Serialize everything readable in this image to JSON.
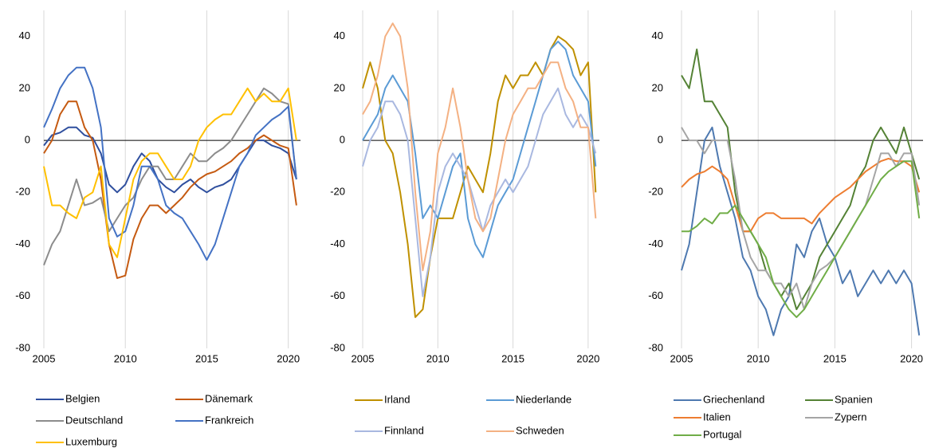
{
  "chart_data": [
    {
      "type": "line",
      "x": [
        2005,
        2005.5,
        2006,
        2006.5,
        2007,
        2007.5,
        2008,
        2008.5,
        2009,
        2009.5,
        2010,
        2010.5,
        2011,
        2011.5,
        2012,
        2012.5,
        2013,
        2013.5,
        2014,
        2014.5,
        2015,
        2015.5,
        2016,
        2016.5,
        2017,
        2017.5,
        2018,
        2018.5,
        2019,
        2019.5,
        2020,
        2020.5
      ],
      "xlim": [
        2005,
        2020.75
      ],
      "xticks": [
        2005,
        2010,
        2015,
        2020
      ],
      "ylim": [
        -80,
        50
      ],
      "yticks": [
        -80,
        -60,
        -40,
        -20,
        0,
        20,
        40
      ],
      "grid": true,
      "legend": "bottom",
      "series": [
        {
          "name": "Belgien",
          "color": "#2f4f9e",
          "values": [
            -2,
            2,
            3,
            5,
            5,
            2,
            1,
            -5,
            -17,
            -20,
            -17,
            -10,
            -5,
            -8,
            -15,
            -18,
            -20,
            -17,
            -15,
            -18,
            -20,
            -18,
            -17,
            -15,
            -10,
            -5,
            0,
            0,
            -2,
            -3,
            -5,
            -15
          ]
        },
        {
          "name": "Dänemark",
          "color": "#c55a11",
          "values": [
            -5,
            0,
            10,
            15,
            15,
            5,
            0,
            -15,
            -40,
            -53,
            -52,
            -38,
            -30,
            -25,
            -25,
            -28,
            -25,
            -22,
            -18,
            -15,
            -13,
            -12,
            -10,
            -8,
            -5,
            -3,
            0,
            2,
            0,
            -2,
            -3,
            -25
          ]
        },
        {
          "name": "Deutschland",
          "color": "#8c8c8c",
          "values": [
            -48,
            -40,
            -35,
            -25,
            -15,
            -25,
            -24,
            -22,
            -35,
            -30,
            -25,
            -22,
            -15,
            -10,
            -10,
            -15,
            -15,
            -10,
            -5,
            -8,
            -8,
            -5,
            -3,
            0,
            5,
            10,
            15,
            20,
            18,
            15,
            14,
            -15
          ]
        },
        {
          "name": "Frankreich",
          "color": "#4472c4",
          "values": [
            5,
            12,
            20,
            25,
            28,
            28,
            20,
            5,
            -30,
            -37,
            -35,
            -25,
            -10,
            -10,
            -15,
            -25,
            -28,
            -30,
            -35,
            -40,
            -46,
            -40,
            -30,
            -20,
            -10,
            -5,
            2,
            5,
            8,
            10,
            13,
            -15
          ]
        },
        {
          "name": "Luxemburg",
          "color": "#ffc000",
          "values": [
            -10,
            -25,
            -25,
            -28,
            -30,
            -22,
            -20,
            -10,
            -40,
            -45,
            -30,
            -15,
            -8,
            -5,
            -5,
            -10,
            -15,
            -15,
            -10,
            0,
            5,
            8,
            10,
            10,
            15,
            20,
            15,
            18,
            15,
            15,
            20,
            0
          ]
        }
      ]
    },
    {
      "type": "line",
      "x": [
        2005,
        2005.5,
        2006,
        2006.5,
        2007,
        2007.5,
        2008,
        2008.5,
        2009,
        2009.5,
        2010,
        2010.5,
        2011,
        2011.5,
        2012,
        2012.5,
        2013,
        2013.5,
        2014,
        2014.5,
        2015,
        2015.5,
        2016,
        2016.5,
        2017,
        2017.5,
        2018,
        2018.5,
        2019,
        2019.5,
        2020,
        2020.5
      ],
      "xlim": [
        2005,
        2020.75
      ],
      "xticks": [
        2005,
        2010,
        2015,
        2020
      ],
      "ylim": [
        -80,
        50
      ],
      "yticks": [
        -80,
        -60,
        -40,
        -20,
        0,
        20,
        40
      ],
      "grid": true,
      "legend": "bottom",
      "series": [
        {
          "name": "Irland",
          "color": "#bf9000",
          "values": [
            20,
            30,
            20,
            0,
            -5,
            -20,
            -40,
            -68,
            -65,
            -45,
            -30,
            -30,
            -30,
            -20,
            -10,
            -15,
            -20,
            -5,
            15,
            25,
            20,
            25,
            25,
            30,
            25,
            35,
            40,
            38,
            35,
            25,
            30,
            -20
          ]
        },
        {
          "name": "Niederlande",
          "color": "#5b9bd5",
          "values": [
            0,
            5,
            10,
            20,
            25,
            20,
            15,
            -5,
            -30,
            -25,
            -30,
            -20,
            -10,
            -5,
            -30,
            -40,
            -45,
            -35,
            -25,
            -20,
            -15,
            -5,
            5,
            15,
            25,
            35,
            38,
            35,
            25,
            20,
            15,
            -10
          ]
        },
        {
          "name": "Finnland",
          "color": "#a9b8e0",
          "values": [
            -10,
            0,
            5,
            15,
            15,
            10,
            0,
            -30,
            -60,
            -45,
            -20,
            -10,
            -5,
            -10,
            -15,
            -25,
            -35,
            -25,
            -20,
            -15,
            -20,
            -15,
            -10,
            0,
            10,
            15,
            20,
            10,
            5,
            10,
            5,
            -5
          ]
        },
        {
          "name": "Schweden",
          "color": "#f4b183",
          "values": [
            10,
            15,
            25,
            40,
            45,
            40,
            20,
            -20,
            -50,
            -35,
            -5,
            5,
            20,
            5,
            -15,
            -30,
            -35,
            -30,
            -15,
            0,
            10,
            15,
            20,
            20,
            25,
            30,
            30,
            20,
            15,
            5,
            5,
            -30
          ]
        }
      ]
    },
    {
      "type": "line",
      "x": [
        2005,
        2005.5,
        2006,
        2006.5,
        2007,
        2007.5,
        2008,
        2008.5,
        2009,
        2009.5,
        2010,
        2010.5,
        2011,
        2011.5,
        2012,
        2012.5,
        2013,
        2013.5,
        2014,
        2014.5,
        2015,
        2015.5,
        2016,
        2016.5,
        2017,
        2017.5,
        2018,
        2018.5,
        2019,
        2019.5,
        2020,
        2020.5
      ],
      "xlim": [
        2005,
        2020.75
      ],
      "xticks": [
        2005,
        2010,
        2015,
        2020
      ],
      "ylim": [
        -80,
        50
      ],
      "yticks": [
        -80,
        -60,
        -40,
        -20,
        0,
        20,
        40
      ],
      "grid": true,
      "legend": "bottom",
      "series": [
        {
          "name": "Griechenland",
          "color": "#4e79b0",
          "values": [
            -50,
            -40,
            -20,
            0,
            5,
            -10,
            -20,
            -30,
            -45,
            -50,
            -60,
            -65,
            -75,
            -65,
            -60,
            -40,
            -45,
            -35,
            -30,
            -40,
            -45,
            -55,
            -50,
            -60,
            -55,
            -50,
            -55,
            -50,
            -55,
            -50,
            -55,
            -75
          ]
        },
        {
          "name": "Spanien",
          "color": "#548235",
          "values": [
            25,
            20,
            35,
            15,
            15,
            10,
            5,
            -20,
            -35,
            -35,
            -40,
            -50,
            -55,
            -60,
            -55,
            -65,
            -60,
            -55,
            -45,
            -40,
            -35,
            -30,
            -25,
            -15,
            -10,
            0,
            5,
            0,
            -5,
            5,
            -5,
            -15
          ]
        },
        {
          "name": "Italien",
          "color": "#ed7d31",
          "values": [
            -18,
            -15,
            -13,
            -12,
            -10,
            -12,
            -15,
            -25,
            -35,
            -35,
            -30,
            -28,
            -28,
            -30,
            -30,
            -30,
            -30,
            -32,
            -28,
            -25,
            -22,
            -20,
            -18,
            -15,
            -12,
            -10,
            -8,
            -7,
            -8,
            -8,
            -10,
            -20
          ]
        },
        {
          "name": "Zypern",
          "color": "#a5a5a5",
          "values": [
            5,
            0,
            0,
            -5,
            0,
            0,
            0,
            -15,
            -35,
            -45,
            -50,
            -50,
            -55,
            -55,
            -60,
            -55,
            -65,
            -55,
            -50,
            -48,
            -45,
            -40,
            -35,
            -30,
            -25,
            -15,
            -5,
            -5,
            -10,
            -5,
            -5,
            -25
          ]
        },
        {
          "name": "Portugal",
          "color": "#70ad47",
          "values": [
            -35,
            -35,
            -33,
            -30,
            -32,
            -28,
            -28,
            -25,
            -30,
            -35,
            -40,
            -45,
            -55,
            -60,
            -65,
            -68,
            -65,
            -60,
            -55,
            -50,
            -45,
            -40,
            -35,
            -30,
            -25,
            -20,
            -15,
            -12,
            -10,
            -8,
            -8,
            -30
          ]
        }
      ]
    }
  ]
}
